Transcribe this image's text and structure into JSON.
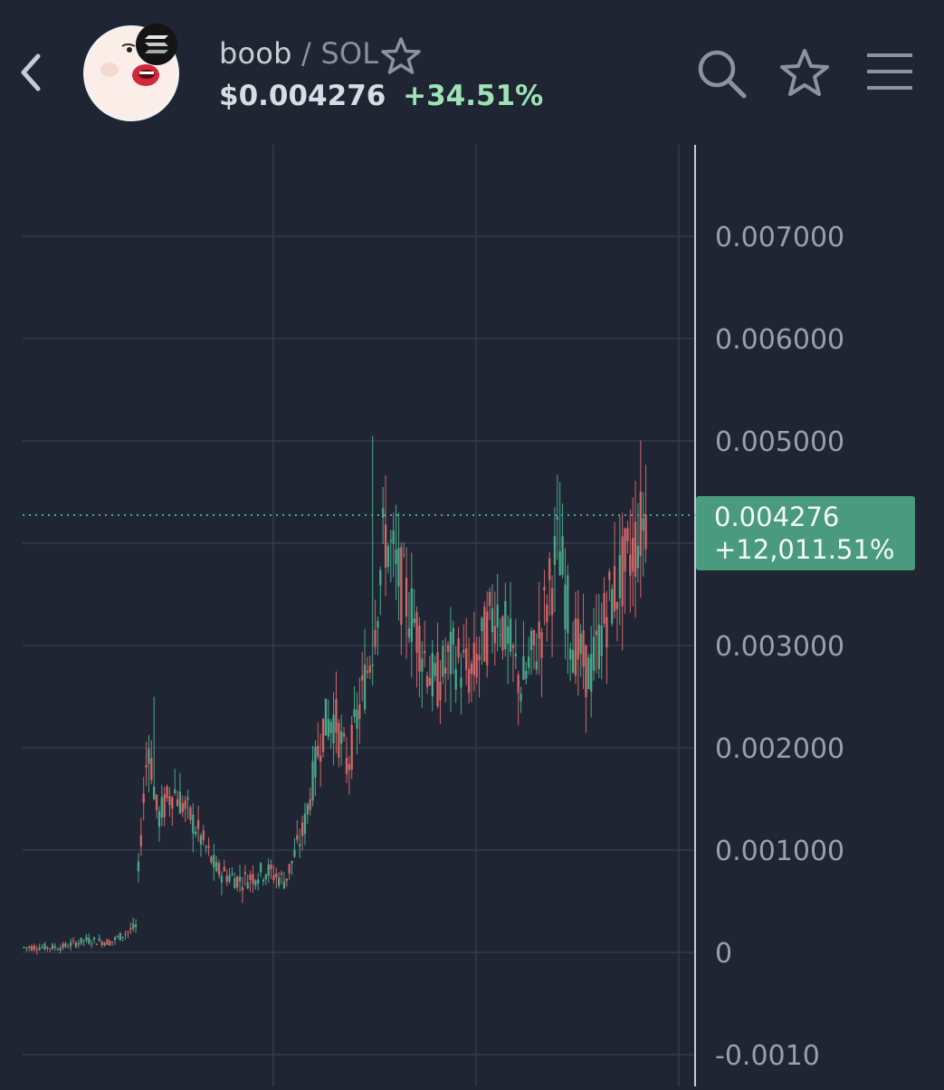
{
  "header": {
    "back_icon": "chevron-left-icon",
    "token_logo": "token-avatar",
    "chain_badge_icon": "solana-icon",
    "base_symbol": "boob",
    "separator": "/",
    "quote_symbol": "SOL",
    "price": "$0.004276",
    "change_24h": "+34.51%",
    "icons": [
      "search-icon",
      "star-icon",
      "menu-icon"
    ]
  },
  "chart": {
    "last_price": "0.004276",
    "last_change": "+12,011.51%",
    "colors": {
      "up": "#4aa88b",
      "down": "#d26767",
      "background": "#1f2533",
      "grid": "#343b4a"
    }
  },
  "chart_data": {
    "type": "candlestick",
    "y_axis": {
      "ticks": [
        "-0.0010",
        "0",
        "0.001000",
        "0.002000",
        "0.003000",
        "0.005000",
        "0.006000",
        "0.007000"
      ],
      "range": [
        -0.00115,
        0.008
      ]
    },
    "last_price": 0.004276,
    "price_path": [
      [
        0,
        5e-05
      ],
      [
        0.06,
        5e-05
      ],
      [
        0.1,
        0.00012
      ],
      [
        0.14,
        0.0001
      ],
      [
        0.18,
        0.00025
      ],
      [
        0.185,
        0.0009
      ],
      [
        0.2,
        0.0021
      ],
      [
        0.215,
        0.0013
      ],
      [
        0.24,
        0.0016
      ],
      [
        0.27,
        0.0013
      ],
      [
        0.31,
        0.0008
      ],
      [
        0.35,
        0.0007
      ],
      [
        0.39,
        0.0008
      ],
      [
        0.42,
        0.0007
      ],
      [
        0.45,
        0.0012
      ],
      [
        0.48,
        0.0022
      ],
      [
        0.5,
        0.0023
      ],
      [
        0.52,
        0.0018
      ],
      [
        0.54,
        0.0024
      ],
      [
        0.56,
        0.003
      ],
      [
        0.58,
        0.0041
      ],
      [
        0.6,
        0.0037
      ],
      [
        0.63,
        0.0032
      ],
      [
        0.66,
        0.0026
      ],
      [
        0.69,
        0.0029
      ],
      [
        0.72,
        0.0027
      ],
      [
        0.76,
        0.0034
      ],
      [
        0.8,
        0.0026
      ],
      [
        0.83,
        0.0031
      ],
      [
        0.86,
        0.004
      ],
      [
        0.88,
        0.0031
      ],
      [
        0.91,
        0.0027
      ],
      [
        0.94,
        0.0034
      ],
      [
        0.97,
        0.0038
      ],
      [
        1.0,
        0.004276
      ]
    ],
    "spikes": [
      {
        "x": 0.21,
        "high": 0.0025
      },
      {
        "x": 0.56,
        "high": 0.00505
      },
      {
        "x": 0.86,
        "high": 0.0046
      },
      {
        "x": 0.995,
        "high": 0.0045
      }
    ]
  }
}
